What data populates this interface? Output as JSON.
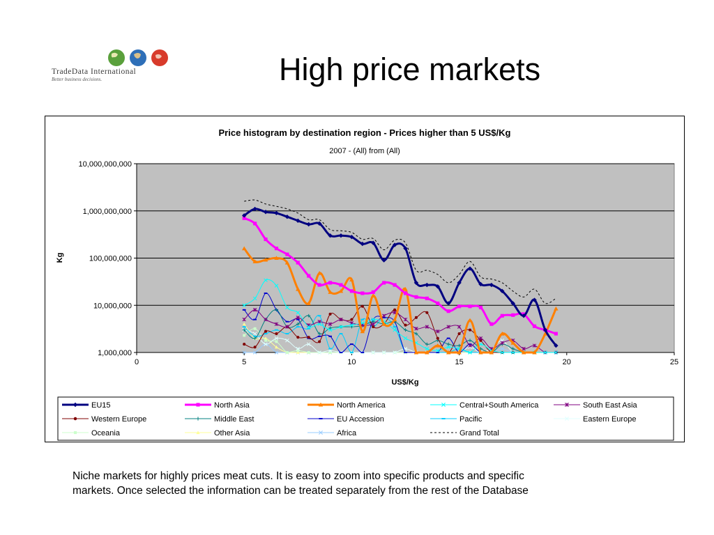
{
  "logo": {
    "name_main": "TradeData International",
    "tagline": "Better business decisions."
  },
  "slide": {
    "title": "High price markets",
    "caption": [
      "Niche markets for highly prices meat cuts. It is easy to zoom into specific products and specific",
      "markets. Once selected the information can be treated separately from the rest of the Database"
    ]
  },
  "chart_data": {
    "type": "line",
    "title": "Price histogram by destination region - Prices higher than 5 US$/Kg",
    "subtitle": "2007 - (All) from (All)",
    "xlabel": "US$/Kg",
    "ylabel": "Kg",
    "xlim": [
      0,
      25
    ],
    "x_ticks": [
      0,
      5,
      10,
      15,
      20,
      25
    ],
    "ylim": [
      1000000,
      10000000000
    ],
    "y_scale": "log",
    "y_tick_labels": [
      "1,000,000",
      "10,000,000",
      "100,000,000",
      "1,000,000,000",
      "10,000,000,000"
    ],
    "y_ticks": [
      1000000,
      10000000,
      100000000,
      1000000000,
      10000000000
    ],
    "grid": "horizontal",
    "plot_background": "#c0c0c0",
    "legend_position": "bottom",
    "series": [
      {
        "name": "EU15",
        "color": "#000080",
        "width": 3,
        "marker": "diamond",
        "x": [
          5,
          5.5,
          6,
          6.5,
          7,
          7.5,
          8,
          8.5,
          9,
          9.5,
          10,
          10.5,
          11,
          11.5,
          12,
          12.5,
          13,
          13.5,
          14,
          14.5,
          15,
          15.5,
          16,
          16.5,
          17,
          17.5,
          18,
          18.5,
          19,
          19.5
        ],
        "y": [
          800000000,
          1100000000,
          950000000,
          900000000,
          750000000,
          620000000,
          520000000,
          540000000,
          300000000,
          300000000,
          280000000,
          200000000,
          210000000,
          90000000,
          190000000,
          160000000,
          30000000,
          27000000,
          25000000,
          11000000,
          30000000,
          60000000,
          28000000,
          27000000,
          20000000,
          11000000,
          6000000,
          13000000,
          3000000,
          1400000
        ]
      },
      {
        "name": "North Asia",
        "color": "#ff00ff",
        "width": 3,
        "marker": "square",
        "x": [
          5,
          5.5,
          6,
          6.5,
          7,
          7.5,
          8,
          8.5,
          9,
          9.5,
          10,
          10.5,
          11,
          11.5,
          12,
          12.5,
          13,
          13.5,
          14,
          14.5,
          15,
          15.5,
          16,
          16.5,
          17,
          17.5,
          18,
          18.5,
          19,
          19.5
        ],
        "y": [
          700000000,
          540000000,
          250000000,
          160000000,
          120000000,
          80000000,
          42000000,
          27000000,
          30000000,
          27000000,
          20000000,
          18000000,
          19000000,
          30000000,
          27000000,
          18000000,
          15000000,
          14000000,
          11000000,
          7500000,
          9500000,
          9500000,
          9000000,
          4000000,
          6000000,
          6200000,
          6500000,
          3600000,
          3000000,
          2500000
        ]
      },
      {
        "name": "North America",
        "color": "#ff8000",
        "width": 3,
        "marker": "triangle",
        "x": [
          5,
          5.5,
          6,
          6.5,
          7,
          7.5,
          8,
          8.5,
          9,
          9.5,
          10,
          10.5,
          11,
          11.5,
          12,
          12.5,
          13,
          13.5,
          14,
          14.5,
          15,
          15.5,
          16,
          16.5,
          17,
          17.5,
          18,
          18.5,
          19,
          19.5
        ],
        "y": [
          160000000,
          85000000,
          92000000,
          100000000,
          80000000,
          22000000,
          11000000,
          48000000,
          19000000,
          20000000,
          35000000,
          2800000,
          16000000,
          4000000,
          5000000,
          22000000,
          1000000,
          1000000,
          1400000,
          1000000,
          1000000,
          4800000,
          1000000,
          1000000,
          2500000,
          1600000,
          1000000,
          1000000,
          2500000,
          8500000
        ]
      },
      {
        "name": "Central+South America",
        "color": "#00ffff",
        "width": 1,
        "marker": "x",
        "x": [
          5,
          5.5,
          6,
          6.5,
          7,
          7.5,
          8,
          8.5,
          9,
          9.5,
          10,
          10.5,
          11,
          11.5,
          12,
          12.5,
          13,
          13.5,
          14,
          14.5,
          15,
          15.5,
          16,
          16.5,
          17,
          17.5,
          18,
          18.5,
          19,
          19.5
        ],
        "y": [
          10000000,
          14000000,
          34000000,
          26000000,
          9000000,
          7000000,
          3500000,
          4000000,
          3000000,
          3500000,
          3800000,
          4200000,
          5000000,
          4500000,
          3000000,
          2000000,
          1600000,
          1200000,
          1100000,
          1300000,
          1200000,
          1000000,
          1500000,
          1100000,
          1000000,
          1000000,
          1000000,
          1000000,
          1000000,
          1000000
        ]
      },
      {
        "name": "South East Asia",
        "color": "#800080",
        "width": 1,
        "marker": "star",
        "x": [
          5,
          5.5,
          6,
          6.5,
          7,
          7.5,
          8,
          8.5,
          9,
          9.5,
          10,
          10.5,
          11,
          11.5,
          12,
          12.5,
          13,
          13.5,
          14,
          14.5,
          15,
          15.5,
          16,
          16.5,
          17,
          17.5,
          18,
          18.5,
          19,
          19.5
        ],
        "y": [
          5000000,
          8000000,
          5000000,
          4000000,
          3500000,
          5500000,
          3800000,
          4500000,
          4000000,
          5000000,
          4200000,
          3800000,
          4000000,
          6000000,
          7000000,
          5000000,
          3200000,
          3500000,
          2800000,
          3500000,
          3500000,
          1400000,
          2000000,
          1200000,
          1600000,
          1800000,
          1200000,
          1400000,
          1000000,
          1000000
        ]
      },
      {
        "name": "Western Europe",
        "color": "#800000",
        "width": 1,
        "marker": "circle",
        "x": [
          5,
          5.5,
          6,
          6.5,
          7,
          7.5,
          8,
          8.5,
          9,
          9.5,
          10,
          10.5,
          11,
          11.5,
          12,
          12.5,
          13,
          13.5,
          14,
          14.5,
          15,
          15.5,
          16,
          16.5,
          17,
          17.5,
          18,
          18.5,
          19,
          19.5
        ],
        "y": [
          1500000,
          1300000,
          2800000,
          2500000,
          3500000,
          2100000,
          2100000,
          1700000,
          6500000,
          5000000,
          5000000,
          9500000,
          3500000,
          4000000,
          8000000,
          3800000,
          5500000,
          7000000,
          2000000,
          1000000,
          2500000,
          3000000,
          1800000,
          1000000,
          1000000,
          1000000,
          1000000,
          1000000,
          1000000,
          1000000
        ]
      },
      {
        "name": "Middle East",
        "color": "#008080",
        "width": 1,
        "marker": "plus",
        "x": [
          5,
          5.5,
          6,
          6.5,
          7,
          7.5,
          8,
          8.5,
          9,
          9.5,
          10,
          10.5,
          11,
          11.5,
          12,
          12.5,
          13,
          13.5,
          14,
          14.5,
          15,
          15.5,
          16,
          16.5,
          17,
          17.5,
          18,
          18.5,
          19,
          19.5
        ],
        "y": [
          3000000,
          2000000,
          5000000,
          8000000,
          3500000,
          4000000,
          6000000,
          2500000,
          3300000,
          3500000,
          3500000,
          3700000,
          4500000,
          4000000,
          4500000,
          3000000,
          2500000,
          1500000,
          1800000,
          1500000,
          1400000,
          1800000,
          1200000,
          1000000,
          1500000,
          1200000,
          1000000,
          1000000,
          1000000,
          1000000
        ]
      },
      {
        "name": "EU Accession",
        "color": "#0000cd",
        "width": 1,
        "marker": "dash",
        "x": [
          5,
          5.5,
          6,
          6.5,
          7,
          7.5,
          8,
          8.5,
          9,
          9.5,
          10,
          10.5,
          11,
          11.5,
          12,
          12.5,
          13,
          13.5,
          14,
          14.5,
          15,
          15.5,
          16,
          16.5,
          17,
          17.5,
          18,
          18.5,
          19,
          19.5
        ],
        "y": [
          8000000,
          5000000,
          18000000,
          8000000,
          4500000,
          5000000,
          2000000,
          2200000,
          2200000,
          1000000,
          1500000,
          1000000,
          5000000,
          5500000,
          4500000,
          1000000,
          1000000,
          1000000,
          1000000,
          2000000,
          1000000,
          1500000,
          1000000,
          1000000,
          1000000,
          1000000,
          1000000,
          1000000,
          1000000,
          1000000
        ]
      },
      {
        "name": "Pacific",
        "color": "#00ccff",
        "width": 1,
        "marker": "dash",
        "x": [
          5,
          5.5,
          6,
          6.5,
          7,
          7.5,
          8,
          8.5,
          9,
          9.5,
          10,
          10.5,
          11,
          11.5,
          12,
          12.5,
          13,
          13.5,
          14,
          14.5,
          15,
          15.5,
          16,
          16.5,
          17,
          17.5,
          18,
          18.5,
          19,
          19.5
        ],
        "y": [
          3500000,
          2200000,
          2500000,
          3000000,
          2500000,
          3500000,
          3200000,
          6000000,
          1200000,
          2500000,
          1000000,
          5000000,
          3500000,
          5500000,
          3500000,
          1000000,
          1000000,
          1000000,
          1000000,
          1000000,
          1200000,
          1000000,
          1000000,
          1000000,
          1000000,
          1000000,
          1000000,
          1000000,
          1000000,
          1000000
        ]
      },
      {
        "name": "Eastern Europe",
        "color": "#e0ffff",
        "width": 1,
        "marker": "x",
        "x": [
          5,
          5.5,
          6,
          6.5,
          7,
          7.5,
          8,
          8.5,
          9,
          9.5,
          10,
          10.5,
          11,
          11.5,
          12,
          12.5,
          13,
          13.5,
          14,
          14.5,
          15,
          15.5,
          16,
          16.5,
          17,
          17.5,
          18,
          18.5,
          19,
          19.5
        ],
        "y": [
          3000000,
          2500000,
          1500000,
          2000000,
          1800000,
          1200000,
          1500000,
          1000000,
          1100000,
          1000000,
          1000000,
          1000000,
          1000000,
          1000000,
          1000000,
          1200000,
          1000000,
          1000000,
          1000000,
          1000000,
          1000000,
          1300000,
          1000000,
          1200000,
          1800000,
          1000000,
          1000000,
          1000000,
          1000000,
          1000000
        ]
      },
      {
        "name": "Oceania",
        "color": "#ccffcc",
        "width": 1,
        "marker": "square",
        "x": [
          5,
          5.5,
          6,
          6.5,
          7,
          7.5,
          8,
          8.5,
          9,
          9.5,
          10,
          10.5,
          11,
          11.5,
          12,
          12.5,
          13,
          13.5,
          14,
          14.5,
          15,
          15.5,
          16,
          16.5,
          17,
          17.5,
          18,
          18.5,
          19,
          19.5
        ],
        "y": [
          2300000,
          3200000,
          1800000,
          1700000,
          1000000,
          1100000,
          1000000,
          1000000,
          1000000,
          1000000,
          1000000,
          1000000,
          1000000,
          1000000,
          1000000,
          1000000,
          1000000,
          1000000,
          1000000,
          1000000,
          1000000,
          1000000,
          1000000,
          1000000,
          1000000,
          1000000,
          1000000,
          1000000,
          1000000,
          1000000
        ]
      },
      {
        "name": "Other Asia",
        "color": "#ffff99",
        "width": 1,
        "marker": "triangle",
        "x": [
          5,
          5.5,
          6,
          6.5,
          7,
          7.5,
          8,
          8.5,
          9,
          9.5,
          10,
          10.5,
          11,
          11.5,
          12,
          12.5,
          13,
          13.5,
          14,
          14.5,
          15,
          15.5,
          16,
          16.5,
          17,
          17.5,
          18,
          18.5,
          19,
          19.5
        ],
        "y": [
          4000000,
          2000000,
          2000000,
          1300000,
          1000000,
          1000000,
          1000000,
          1000000,
          1000000,
          1000000,
          1000000,
          1000000,
          1000000,
          1000000,
          1000000,
          1000000,
          1000000,
          1000000,
          1000000,
          1000000,
          1000000,
          1000000,
          1000000,
          1000000,
          1000000,
          1000000,
          1000000,
          1000000,
          1000000,
          1000000
        ]
      },
      {
        "name": "Africa",
        "color": "#99ccff",
        "width": 1,
        "marker": "x",
        "x": [
          5,
          5.5,
          6,
          6.5,
          7,
          7.5,
          8,
          8.5,
          9,
          9.5,
          10,
          10.5,
          11,
          11.5,
          12,
          12.5,
          13,
          13.5,
          14,
          14.5,
          15,
          15.5,
          16,
          16.5,
          17,
          17.5,
          18,
          18.5,
          19,
          19.5
        ],
        "y": [
          1000000,
          1000000,
          1500000,
          1000000,
          1000000,
          1000000,
          1000000,
          1000000,
          1000000,
          1000000,
          1000000,
          1000000,
          1000000,
          1000000,
          1000000,
          1000000,
          1000000,
          1000000,
          1000000,
          1000000,
          1000000,
          1000000,
          1000000,
          1000000,
          1200000,
          1000000,
          1000000,
          1000000,
          1000000,
          1000000
        ]
      },
      {
        "name": "Grand Total",
        "color": "#000000",
        "width": 1,
        "marker": "none",
        "dash": "3,3",
        "x": [
          5,
          5.5,
          6,
          6.5,
          7,
          7.5,
          8,
          8.5,
          9,
          9.5,
          10,
          10.5,
          11,
          11.5,
          12,
          12.5,
          13,
          13.5,
          14,
          14.5,
          15,
          15.5,
          16,
          16.5,
          17,
          17.5,
          18,
          18.5,
          19,
          19.5
        ],
        "y": [
          1600000000,
          1700000000,
          1400000000,
          1250000000,
          1100000000,
          900000000,
          650000000,
          650000000,
          400000000,
          380000000,
          350000000,
          250000000,
          260000000,
          150000000,
          240000000,
          210000000,
          55000000,
          55000000,
          45000000,
          30000000,
          45000000,
          85000000,
          40000000,
          36000000,
          30000000,
          20000000,
          15000000,
          22000000,
          11000000,
          14000000
        ]
      }
    ]
  }
}
